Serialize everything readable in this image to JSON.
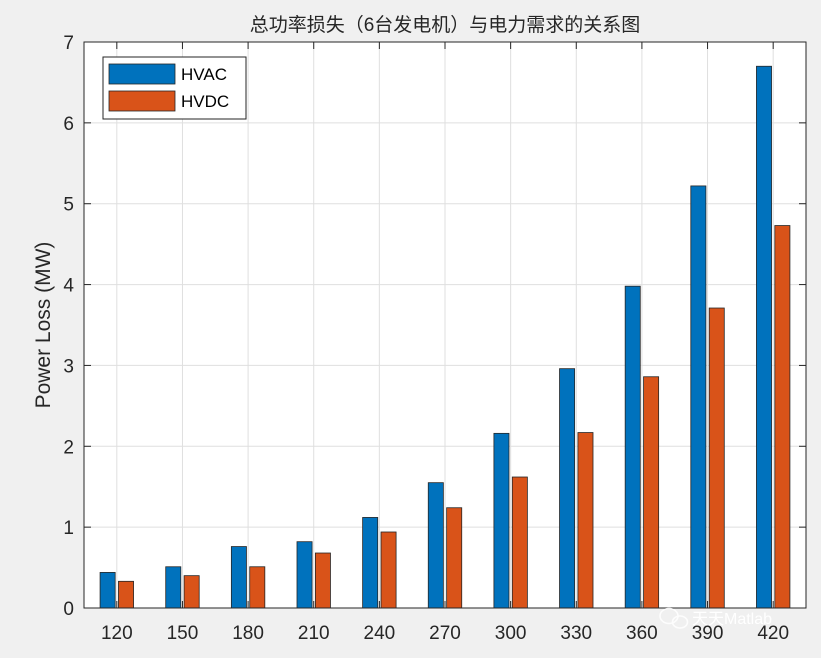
{
  "chart_data": {
    "type": "bar",
    "title": "总功率损失（6台发电机）与电力需求的关系图",
    "xlabel": "",
    "ylabel": "Power Loss (MW)",
    "categories": [
      "120",
      "150",
      "180",
      "210",
      "240",
      "270",
      "300",
      "330",
      "360",
      "390",
      "420"
    ],
    "series": [
      {
        "name": "HVAC",
        "color": "#0072bd",
        "values": [
          0.44,
          0.51,
          0.76,
          0.82,
          1.12,
          1.55,
          2.16,
          2.96,
          3.98,
          5.22,
          6.7
        ]
      },
      {
        "name": "HVDC",
        "color": "#d95319",
        "values": [
          0.33,
          0.4,
          0.51,
          0.68,
          0.94,
          1.24,
          1.62,
          2.17,
          2.86,
          3.71,
          4.73
        ]
      }
    ],
    "ylim": [
      0,
      7
    ],
    "yticks": [
      0,
      1,
      2,
      3,
      4,
      5,
      6,
      7
    ],
    "grid": true,
    "legend_position": "top-left"
  },
  "watermark": {
    "text": "天天Matlab",
    "icon": "wechat-icon"
  }
}
